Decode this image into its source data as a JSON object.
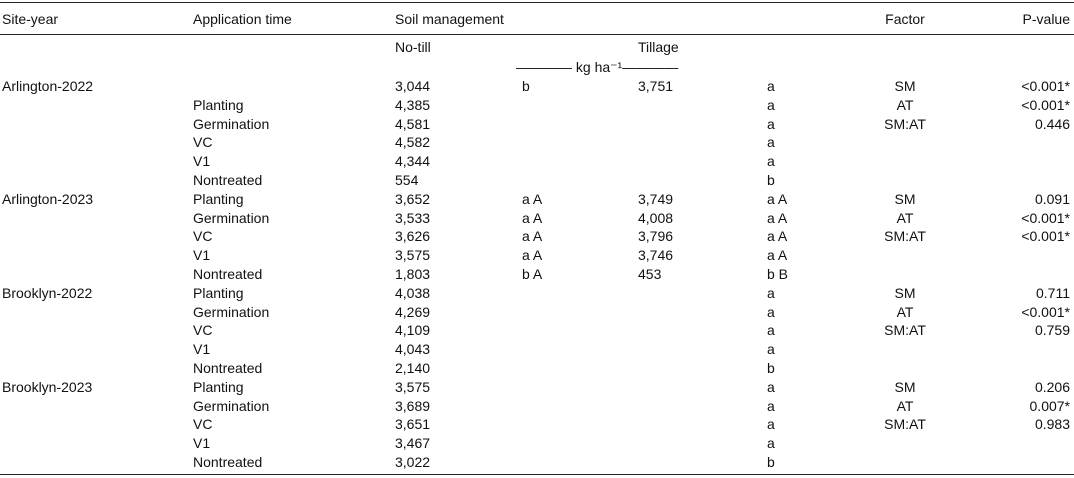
{
  "header": {
    "site_year": "Site-year",
    "application_time": "Application time",
    "soil_management": "Soil management",
    "factor": "Factor",
    "p_value": "P-value"
  },
  "subheader": {
    "no_till": "No-till",
    "tillage": "Tillage",
    "units": "———— kg ha⁻¹————"
  },
  "rows": [
    {
      "site": "Arlington-2022",
      "time": "",
      "nt": "3,044",
      "nt_sig": "b",
      "t": "3,751",
      "t_sig": "a",
      "factor": "SM",
      "p": "<0.001*"
    },
    {
      "site": "",
      "time": "Planting",
      "nt": "4,385",
      "nt_sig": "",
      "t": "",
      "t_sig": "a",
      "factor": "AT",
      "p": "<0.001*"
    },
    {
      "site": "",
      "time": "Germination",
      "nt": "4,581",
      "nt_sig": "",
      "t": "",
      "t_sig": "a",
      "factor": "SM:AT",
      "p": "0.446"
    },
    {
      "site": "",
      "time": "VC",
      "nt": "4,582",
      "nt_sig": "",
      "t": "",
      "t_sig": "a",
      "factor": "",
      "p": ""
    },
    {
      "site": "",
      "time": "V1",
      "nt": "4,344",
      "nt_sig": "",
      "t": "",
      "t_sig": "a",
      "factor": "",
      "p": ""
    },
    {
      "site": "",
      "time": "Nontreated",
      "nt": "554",
      "nt_sig": "",
      "t": "",
      "t_sig": "b",
      "factor": "",
      "p": ""
    },
    {
      "site": "Arlington-2023",
      "time": "Planting",
      "nt": "3,652",
      "nt_sig": "a A",
      "t": "3,749",
      "t_sig": "a A",
      "factor": "SM",
      "p": "0.091"
    },
    {
      "site": "",
      "time": "Germination",
      "nt": "3,533",
      "nt_sig": "a A",
      "t": "4,008",
      "t_sig": "a A",
      "factor": "AT",
      "p": "<0.001*"
    },
    {
      "site": "",
      "time": "VC",
      "nt": "3,626",
      "nt_sig": "a A",
      "t": "3,796",
      "t_sig": "a A",
      "factor": "SM:AT",
      "p": "<0.001*"
    },
    {
      "site": "",
      "time": "V1",
      "nt": "3,575",
      "nt_sig": "a A",
      "t": "3,746",
      "t_sig": "a A",
      "factor": "",
      "p": ""
    },
    {
      "site": "",
      "time": "Nontreated",
      "nt": "1,803",
      "nt_sig": "b A",
      "t": "453",
      "t_sig": "b B",
      "factor": "",
      "p": ""
    },
    {
      "site": "Brooklyn-2022",
      "time": "Planting",
      "nt": "4,038",
      "nt_sig": "",
      "t": "",
      "t_sig": "a",
      "factor": "SM",
      "p": "0.711"
    },
    {
      "site": "",
      "time": "Germination",
      "nt": "4,269",
      "nt_sig": "",
      "t": "",
      "t_sig": "a",
      "factor": "AT",
      "p": "<0.001*"
    },
    {
      "site": "",
      "time": "VC",
      "nt": "4,109",
      "nt_sig": "",
      "t": "",
      "t_sig": "a",
      "factor": "SM:AT",
      "p": "0.759"
    },
    {
      "site": "",
      "time": "V1",
      "nt": "4,043",
      "nt_sig": "",
      "t": "",
      "t_sig": "a",
      "factor": "",
      "p": ""
    },
    {
      "site": "",
      "time": "Nontreated",
      "nt": "2,140",
      "nt_sig": "",
      "t": "",
      "t_sig": "b",
      "factor": "",
      "p": ""
    },
    {
      "site": "Brooklyn-2023",
      "time": "Planting",
      "nt": "3,575",
      "nt_sig": "",
      "t": "",
      "t_sig": "a",
      "factor": "SM",
      "p": "0.206"
    },
    {
      "site": "",
      "time": "Germination",
      "nt": "3,689",
      "nt_sig": "",
      "t": "",
      "t_sig": "a",
      "factor": "AT",
      "p": "0.007*"
    },
    {
      "site": "",
      "time": "VC",
      "nt": "3,651",
      "nt_sig": "",
      "t": "",
      "t_sig": "a",
      "factor": "SM:AT",
      "p": "0.983"
    },
    {
      "site": "",
      "time": "V1",
      "nt": "3,467",
      "nt_sig": "",
      "t": "",
      "t_sig": "a",
      "factor": "",
      "p": ""
    },
    {
      "site": "",
      "time": "Nontreated",
      "nt": "3,022",
      "nt_sig": "",
      "t": "",
      "t_sig": "b",
      "factor": "",
      "p": ""
    }
  ]
}
